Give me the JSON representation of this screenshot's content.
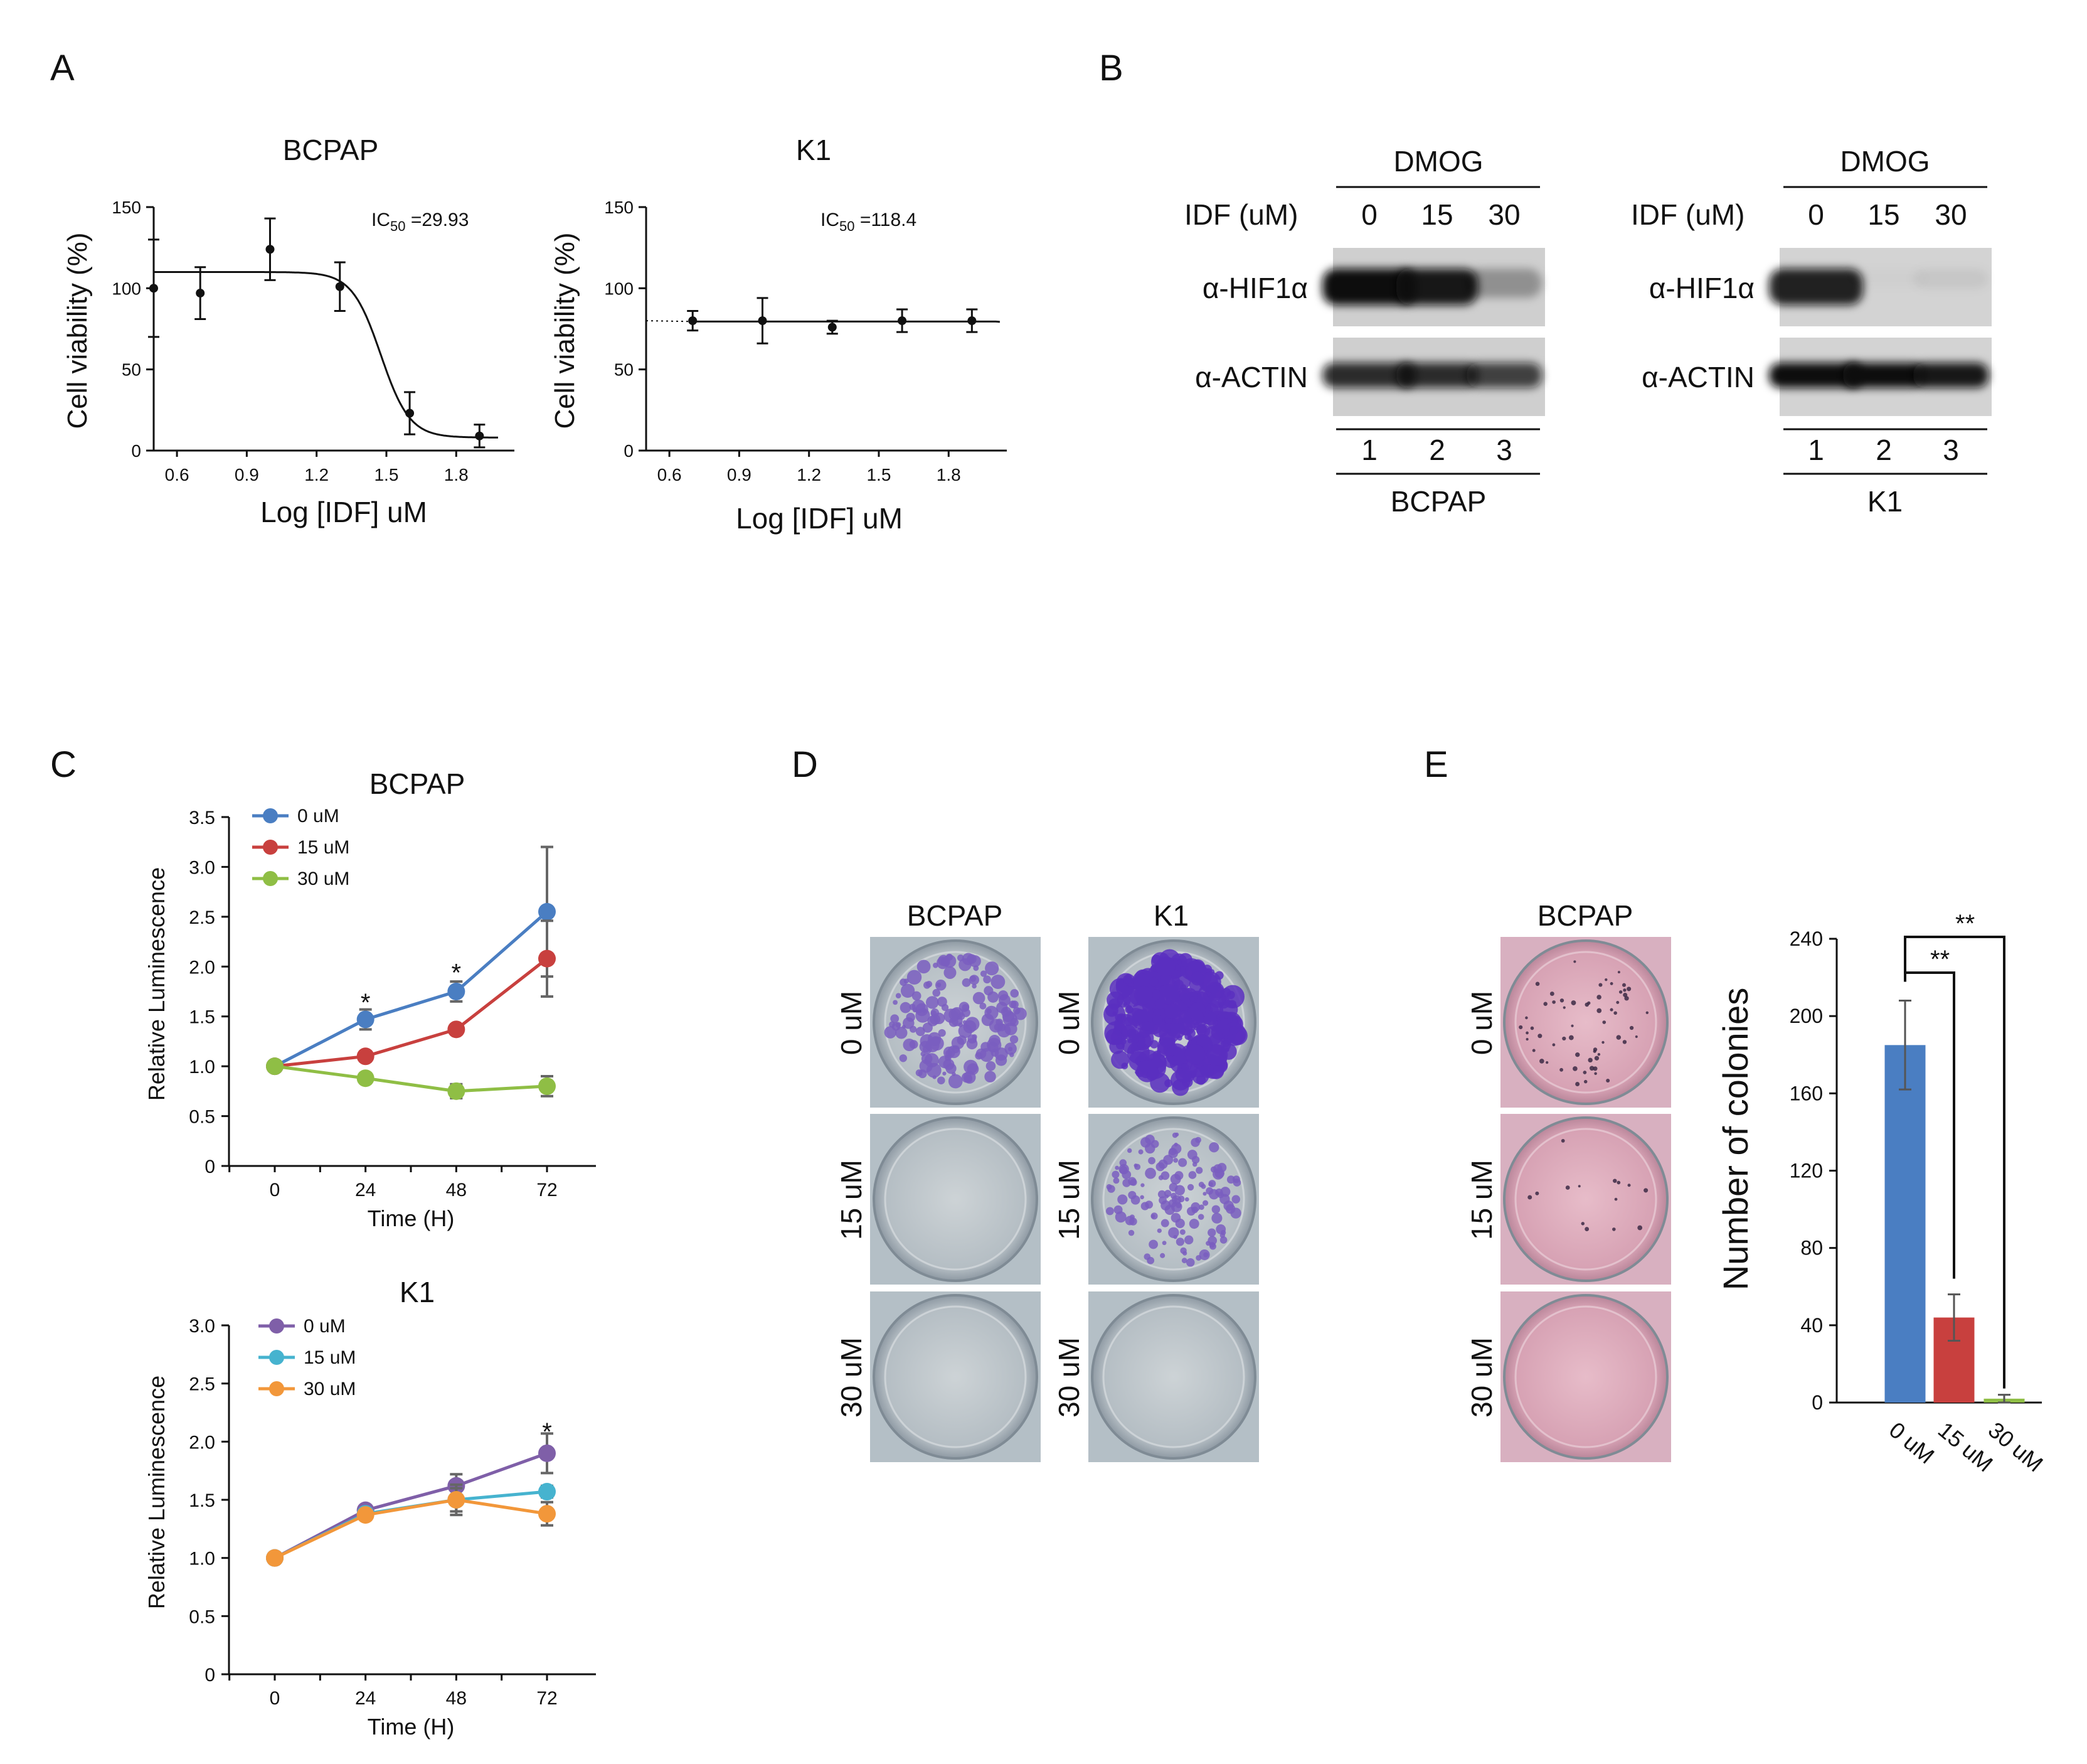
{
  "panel_letters": [
    "A",
    "B",
    "C",
    "D",
    "E"
  ],
  "chart_data": [
    {
      "id": "A_BCPAP",
      "type": "scatter",
      "title": "BCPAP",
      "xlabel": "Log [IDF] uM",
      "ylabel": "Cell viability (%)",
      "xlim": [
        0.5,
        2.05
      ],
      "ylim": [
        0,
        150
      ],
      "xticks": [
        0.6,
        0.9,
        1.2,
        1.5,
        1.8
      ],
      "xtick_labels": [
        "0.6",
        "0.9",
        "1.2",
        "1.5",
        "1.8"
      ],
      "yticks": [
        0,
        50,
        100,
        150
      ],
      "ytick_labels": [
        "0",
        "50",
        "100",
        "150"
      ],
      "annotation": {
        "prefix": "IC",
        "sub": "50",
        "suffix": " =29.93"
      },
      "x": [
        0.5,
        0.7,
        1.0,
        1.3,
        1.6,
        1.9
      ],
      "y": [
        100,
        97,
        124,
        101,
        23,
        9
      ],
      "err": [
        30,
        16,
        19,
        15,
        13,
        7
      ],
      "fit": {
        "top": 110,
        "bottom": 8,
        "logic50": 1.476,
        "hill": 7
      }
    },
    {
      "id": "A_K1",
      "type": "scatter",
      "title": "K1",
      "xlabel": "Log [IDF] uM",
      "ylabel": "Cell viability (%)",
      "xlim": [
        0.5,
        2.05
      ],
      "ylim": [
        0,
        150
      ],
      "xticks": [
        0.6,
        0.9,
        1.2,
        1.5,
        1.8
      ],
      "xtick_labels": [
        "0.6",
        "0.9",
        "1.2",
        "1.5",
        "1.8"
      ],
      "yticks": [
        0,
        50,
        100,
        150
      ],
      "ytick_labels": [
        "0",
        "50",
        "100",
        "150"
      ],
      "annotation": {
        "prefix": "IC",
        "sub": "50",
        "suffix": " =118.4"
      },
      "x": [
        0.7,
        1.0,
        1.3,
        1.6,
        1.9
      ],
      "y": [
        80,
        80,
        76,
        80,
        80
      ],
      "err": [
        6,
        14,
        4,
        7,
        7
      ],
      "fit": {
        "top": 79.5,
        "bottom": 0,
        "logic50": 2.07,
        "hill": 50
      }
    },
    {
      "id": "C_BCPAP",
      "type": "line",
      "title": "BCPAP",
      "xlabel": "Time (H)",
      "ylabel": "Relative Luminescence",
      "x": [
        0,
        24,
        48,
        72
      ],
      "xtick_labels": [
        "0",
        "24",
        "48",
        "72"
      ],
      "ylim": [
        0,
        3.5
      ],
      "yticks": [
        0,
        0.5,
        1,
        1.5,
        2,
        2.5,
        3,
        3.5
      ],
      "ytick_labels": [
        "0",
        "0.5",
        "1.0",
        "1.5",
        "2.0",
        "2.5",
        "3.0",
        "3.5"
      ],
      "series": [
        {
          "name": "0 uM",
          "color": "#4a7ec2",
          "values": [
            1.0,
            1.47,
            1.75,
            2.55
          ],
          "err": [
            0.05,
            0.1,
            0.1,
            0.65
          ]
        },
        {
          "name": "15 uM",
          "color": "#c8403e",
          "values": [
            1.0,
            1.1,
            1.37,
            2.08
          ],
          "err": [
            0.04,
            0.05,
            0.05,
            0.38
          ]
        },
        {
          "name": "30 uM",
          "color": "#8fbe45",
          "values": [
            1.0,
            0.88,
            0.75,
            0.8
          ],
          "err": [
            0.04,
            0.05,
            0.07,
            0.1
          ]
        }
      ],
      "significance": [
        {
          "label": "*",
          "x": 24,
          "y": 1.68
        },
        {
          "label": "*",
          "x": 48,
          "y": 1.98
        }
      ]
    },
    {
      "id": "C_K1",
      "type": "line",
      "title": "K1",
      "xlabel": "Time (H)",
      "ylabel": "Relative Luminescence",
      "x": [
        0,
        24,
        48,
        72
      ],
      "xtick_labels": [
        "0",
        "24",
        "48",
        "72"
      ],
      "ylim": [
        0,
        3.0
      ],
      "yticks": [
        0,
        0.5,
        1,
        1.5,
        2,
        2.5,
        3
      ],
      "ytick_labels": [
        "0",
        "0.5",
        "1.0",
        "1.5",
        "2.0",
        "2.5",
        "3.0"
      ],
      "series": [
        {
          "name": "0 uM",
          "color": "#7f5fa8",
          "values": [
            1.0,
            1.41,
            1.62,
            1.9
          ],
          "err": [
            0.03,
            0.04,
            0.1,
            0.17
          ]
        },
        {
          "name": "15 uM",
          "color": "#46b3cf",
          "values": [
            1.0,
            1.38,
            1.5,
            1.57
          ],
          "err": [
            0.03,
            0.03,
            0.13,
            0.05
          ]
        },
        {
          "name": "30 uM",
          "color": "#f2973a",
          "values": [
            1.0,
            1.37,
            1.5,
            1.38
          ],
          "err": [
            0.03,
            0.03,
            0.1,
            0.1
          ]
        }
      ],
      "significance": [
        {
          "label": "*",
          "x": 72,
          "y": 2.12
        }
      ]
    },
    {
      "id": "E_bar",
      "type": "bar",
      "title": "",
      "ylabel": "Number of colonies",
      "categories": [
        "0 uM",
        "15 uM",
        "30 uM"
      ],
      "values": [
        185,
        44,
        2
      ],
      "err": [
        23,
        12,
        2
      ],
      "colors": [
        "#4a7ec2",
        "#c8403e",
        "#8fbe45"
      ],
      "ylim": [
        0,
        240
      ],
      "yticks": [
        0,
        40,
        80,
        120,
        160,
        200,
        240
      ],
      "ytick_labels": [
        "0",
        "40",
        "80",
        "120",
        "160",
        "200",
        "240"
      ],
      "significance": [
        {
          "label": "**",
          "from": 0,
          "to": 1
        },
        {
          "label": "**",
          "from": 0,
          "to": 2
        }
      ]
    }
  ],
  "western_blot": {
    "group_label": "DMOG",
    "idf_label": "IDF (uM)",
    "doses": [
      "0",
      "15",
      "30"
    ],
    "lanes": [
      "1",
      "2",
      "3"
    ],
    "bands": [
      "α-HIF1α",
      "α-ACTIN"
    ],
    "blots": [
      {
        "cell_line": "BCPAP",
        "hif_intensity": [
          1.0,
          0.95,
          0.3
        ],
        "actin_intensity": [
          0.85,
          0.85,
          0.75
        ]
      },
      {
        "cell_line": "K1",
        "hif_intensity": [
          0.9,
          0.02,
          0.06
        ],
        "actin_intensity": [
          1.0,
          1.0,
          0.95
        ]
      }
    ]
  },
  "colony_plates": {
    "columns": [
      "BCPAP",
      "K1"
    ],
    "rows": [
      "0 uM",
      "15 uM",
      "30 uM"
    ],
    "e_column": "BCPAP",
    "e_rows": [
      "0 uM",
      "15 uM",
      "30 uM"
    ]
  }
}
